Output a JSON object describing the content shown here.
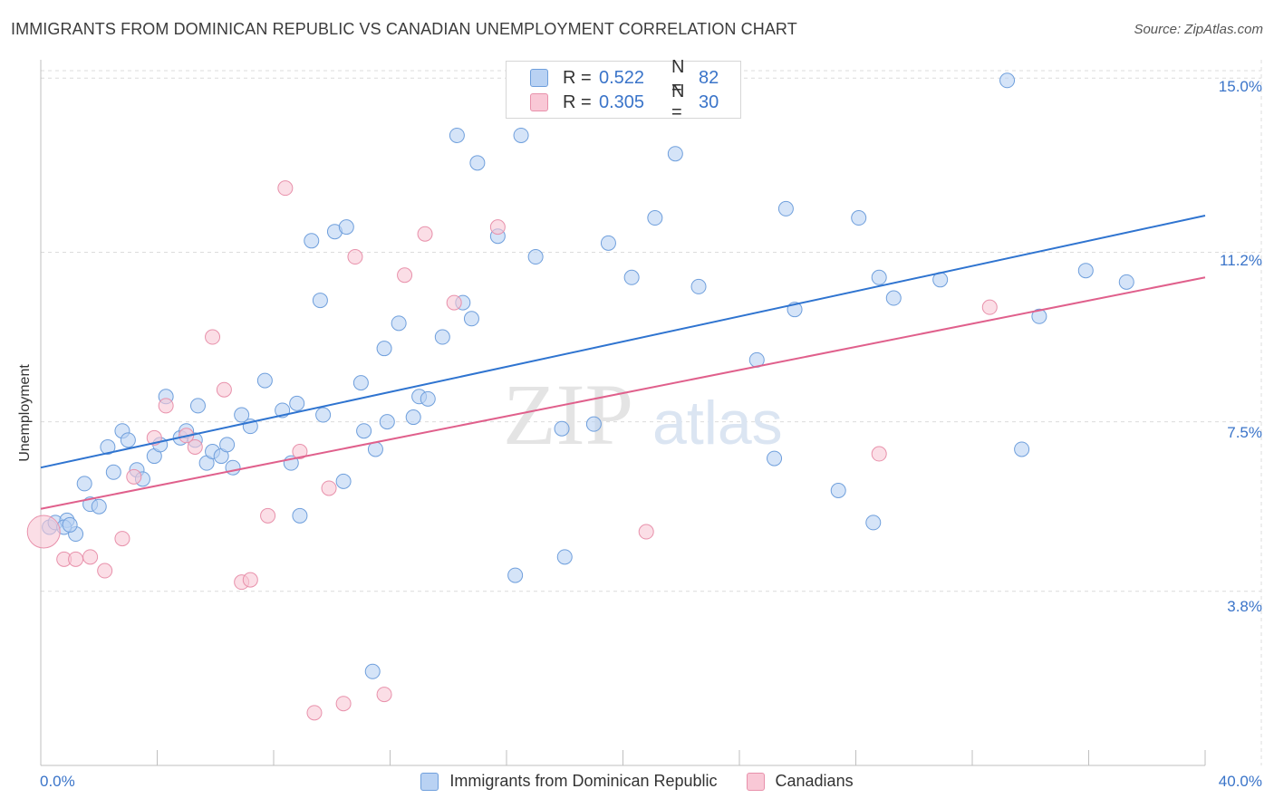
{
  "header": {
    "title": "IMMIGRANTS FROM DOMINICAN REPUBLIC VS CANADIAN UNEMPLOYMENT CORRELATION CHART",
    "source": "Source: ZipAtlas.com"
  },
  "legend": {
    "series1": {
      "r_label": "R =",
      "r_value": "0.522",
      "n_label": "N =",
      "n_value": "82"
    },
    "series2": {
      "r_label": "R =",
      "r_value": "0.305",
      "n_label": "N =",
      "n_value": "30"
    }
  },
  "colors": {
    "blue_fill": "#b9d2f3",
    "blue_stroke": "#6f9fdc",
    "blue_line": "#2f74d0",
    "pink_fill": "#f9c8d6",
    "pink_stroke": "#e891ab",
    "pink_line": "#e0608c"
  },
  "watermark": {
    "zip": "ZIP",
    "atlas": "atlas"
  },
  "chart_data": {
    "type": "scatter",
    "title": "IMMIGRANTS FROM DOMINICAN REPUBLIC VS CANADIAN UNEMPLOYMENT CORRELATION CHART",
    "xlabel": "",
    "ylabel": "Unemployment",
    "xlim": [
      0,
      40
    ],
    "ylim": [
      0.0,
      15.4
    ],
    "x_tick_labels": [
      "0.0%",
      "40.0%"
    ],
    "y_ticks": [
      3.8,
      7.5,
      11.2,
      15.0
    ],
    "y_tick_labels": [
      "3.8%",
      "7.5%",
      "11.2%",
      "15.0%"
    ],
    "grid": true,
    "series": [
      {
        "name": "Immigrants from Dominican Republic",
        "color": "blue",
        "trend": {
          "x": [
            0,
            40
          ],
          "y": [
            6.5,
            12.0
          ]
        },
        "points": [
          [
            0.3,
            5.2
          ],
          [
            0.5,
            5.3
          ],
          [
            0.9,
            5.35
          ],
          [
            1.2,
            5.05
          ],
          [
            1.5,
            6.15
          ],
          [
            1.7,
            5.7
          ],
          [
            2.0,
            5.65
          ],
          [
            2.3,
            6.95
          ],
          [
            2.5,
            6.4
          ],
          [
            2.8,
            7.3
          ],
          [
            3.0,
            7.1
          ],
          [
            3.3,
            6.45
          ],
          [
            3.5,
            6.25
          ],
          [
            3.9,
            6.75
          ],
          [
            4.1,
            7.0
          ],
          [
            4.3,
            8.05
          ],
          [
            4.8,
            7.15
          ],
          [
            5.0,
            7.3
          ],
          [
            5.3,
            7.1
          ],
          [
            5.4,
            7.85
          ],
          [
            5.7,
            6.6
          ],
          [
            5.9,
            6.85
          ],
          [
            6.2,
            6.75
          ],
          [
            6.4,
            7.0
          ],
          [
            6.6,
            6.5
          ],
          [
            6.9,
            7.65
          ],
          [
            7.2,
            7.4
          ],
          [
            7.7,
            8.4
          ],
          [
            8.3,
            7.75
          ],
          [
            8.6,
            6.6
          ],
          [
            8.8,
            7.9
          ],
          [
            8.9,
            5.45
          ],
          [
            9.3,
            11.45
          ],
          [
            9.6,
            10.15
          ],
          [
            9.7,
            7.65
          ],
          [
            10.1,
            11.65
          ],
          [
            10.4,
            6.2
          ],
          [
            10.5,
            11.75
          ],
          [
            11.0,
            8.35
          ],
          [
            11.1,
            7.3
          ],
          [
            11.5,
            6.9
          ],
          [
            11.8,
            9.1
          ],
          [
            11.9,
            7.5
          ],
          [
            12.3,
            9.65
          ],
          [
            12.8,
            7.6
          ],
          [
            13.0,
            8.05
          ],
          [
            13.3,
            8.0
          ],
          [
            13.8,
            9.35
          ],
          [
            14.3,
            13.75
          ],
          [
            14.5,
            10.1
          ],
          [
            14.8,
            9.75
          ],
          [
            15.0,
            13.15
          ],
          [
            15.7,
            11.55
          ],
          [
            16.3,
            4.15
          ],
          [
            16.5,
            13.75
          ],
          [
            17.0,
            11.1
          ],
          [
            17.9,
            7.35
          ],
          [
            18.0,
            4.55
          ],
          [
            19.0,
            7.45
          ],
          [
            19.5,
            11.4
          ],
          [
            20.3,
            10.65
          ],
          [
            21.1,
            11.95
          ],
          [
            21.8,
            13.35
          ],
          [
            22.6,
            10.45
          ],
          [
            24.6,
            8.85
          ],
          [
            25.2,
            6.7
          ],
          [
            25.6,
            12.15
          ],
          [
            25.9,
            9.95
          ],
          [
            27.4,
            6.0
          ],
          [
            28.1,
            11.95
          ],
          [
            28.6,
            5.3
          ],
          [
            28.8,
            10.65
          ],
          [
            29.3,
            10.2
          ],
          [
            30.9,
            10.6
          ],
          [
            33.2,
            14.95
          ],
          [
            33.7,
            6.9
          ],
          [
            34.3,
            9.8
          ],
          [
            35.9,
            10.8
          ],
          [
            37.3,
            10.55
          ],
          [
            11.4,
            2.05
          ],
          [
            0.8,
            5.2
          ],
          [
            1.0,
            5.25
          ]
        ]
      },
      {
        "name": "Canadians",
        "color": "pink",
        "trend": {
          "x": [
            0,
            40
          ],
          "y": [
            5.6,
            10.65
          ]
        },
        "points": [
          [
            0.1,
            5.1
          ],
          [
            0.8,
            4.5
          ],
          [
            1.2,
            4.5
          ],
          [
            1.7,
            4.55
          ],
          [
            2.2,
            4.25
          ],
          [
            2.8,
            4.95
          ],
          [
            3.2,
            6.3
          ],
          [
            3.9,
            7.15
          ],
          [
            4.3,
            7.85
          ],
          [
            5.0,
            7.2
          ],
          [
            5.3,
            6.95
          ],
          [
            5.9,
            9.35
          ],
          [
            6.3,
            8.2
          ],
          [
            6.9,
            4.0
          ],
          [
            7.2,
            4.05
          ],
          [
            7.8,
            5.45
          ],
          [
            8.4,
            12.6
          ],
          [
            8.9,
            6.85
          ],
          [
            9.4,
            1.15
          ],
          [
            9.9,
            6.05
          ],
          [
            10.4,
            1.35
          ],
          [
            10.8,
            11.1
          ],
          [
            11.8,
            1.55
          ],
          [
            12.5,
            10.7
          ],
          [
            13.2,
            11.6
          ],
          [
            14.2,
            10.1
          ],
          [
            15.7,
            11.75
          ],
          [
            20.8,
            5.1
          ],
          [
            28.8,
            6.8
          ],
          [
            32.6,
            10.0
          ]
        ]
      }
    ]
  },
  "bottom_legend": {
    "item1": "Immigrants from Dominican Republic",
    "item2": "Canadians"
  }
}
